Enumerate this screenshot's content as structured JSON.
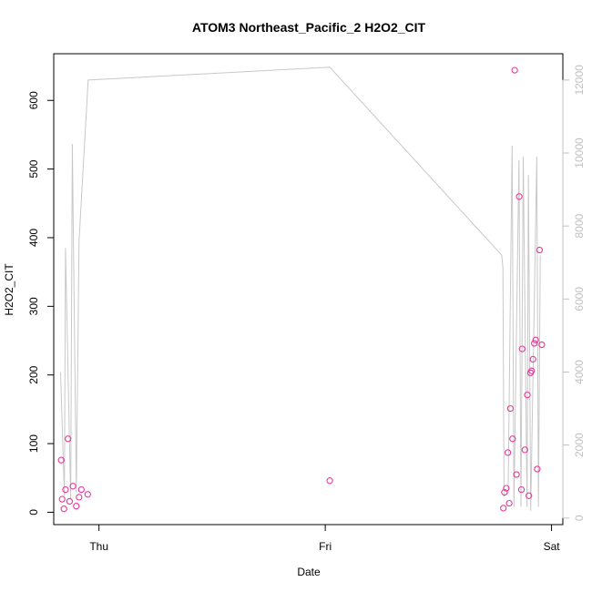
{
  "chart_data": {
    "type": "scatter",
    "title": "ATOM3 Northeast_Pacific_2 H2O2_CIT",
    "xlabel": "Date",
    "ylabel": "H2O2_CIT",
    "x_ticks": [
      "Thu",
      "Fri",
      "Sat"
    ],
    "x_unit": "days",
    "xlim": [
      -0.2,
      2.05
    ],
    "ylim": [
      -18,
      668
    ],
    "y_ticks": [
      0,
      100,
      200,
      300,
      400,
      500,
      600
    ],
    "y2lim": [
      -180,
      12720
    ],
    "y2_ticks": [
      0,
      2000,
      4000,
      6000,
      8000,
      10000,
      12000
    ],
    "grid": false,
    "point_color": "#e8389a",
    "line_color": "#c8c8c8",
    "series": [
      {
        "axis": "left",
        "style": "points",
        "x": [
          -0.167,
          -0.163,
          -0.155,
          -0.148,
          -0.137,
          -0.13,
          -0.115,
          -0.1,
          -0.088,
          -0.078,
          -0.05,
          1.02,
          1.787,
          1.792,
          1.8,
          1.807,
          1.813,
          1.818,
          1.828,
          1.837,
          1.845,
          1.857,
          1.867,
          1.87,
          1.882,
          1.893,
          1.9,
          1.907,
          1.912,
          1.918,
          1.924,
          1.93,
          1.937,
          1.947,
          1.957
        ],
        "y": [
          76,
          19,
          5,
          33,
          107,
          16,
          38,
          9,
          22,
          33,
          26,
          46,
          6,
          29,
          35,
          87,
          13,
          151,
          107,
          644,
          55,
          460,
          33,
          238,
          91,
          171,
          24,
          203,
          206,
          223,
          246,
          251,
          63,
          382,
          244
        ]
      },
      {
        "axis": "right",
        "style": "line",
        "x": [
          -0.17,
          -0.153,
          -0.148,
          -0.125,
          -0.118,
          -0.1,
          -0.088,
          -0.048,
          1.02,
          1.78,
          1.785,
          1.79,
          1.808,
          1.826,
          1.834,
          1.856,
          1.865,
          1.875,
          1.892,
          1.898,
          1.908,
          1.935,
          1.942,
          1.95
        ],
        "y": [
          4000,
          600,
          7400,
          500,
          10250,
          700,
          7600,
          12000,
          12350,
          7200,
          6850,
          600,
          700,
          10200,
          300,
          9800,
          300,
          9900,
          300,
          9400,
          200,
          9900,
          300,
          7200
        ]
      }
    ]
  }
}
